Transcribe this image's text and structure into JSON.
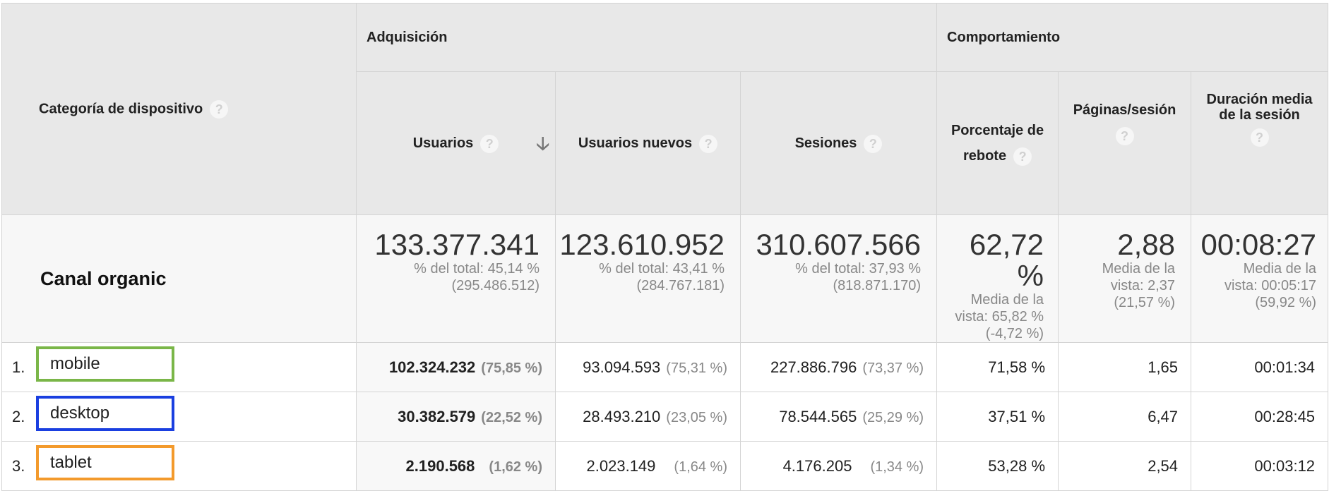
{
  "header": {
    "dimension_label": "Categoría de dispositivo",
    "group_acquisition": "Adquisición",
    "group_behavior": "Comportamiento",
    "help_glyph": "?",
    "sort_glyph": "🡣",
    "columns": {
      "users": "Usuarios",
      "new_users": "Usuarios nuevos",
      "sessions": "Sesiones",
      "bounce_line1": "Porcentaje de",
      "bounce_line2": "rebote",
      "pages_per_session": "Páginas/sesión",
      "avg_duration_line1": "Duración media",
      "avg_duration_line2": "de la sesión"
    }
  },
  "totals": {
    "label": "Canal organic",
    "users": {
      "value": "133.377.341",
      "line1": "% del total: 45,14 %",
      "line2": "(295.486.512)"
    },
    "new_users": {
      "value": "123.610.952",
      "line1": "% del total: 43,41 %",
      "line2": "(284.767.181)"
    },
    "sessions": {
      "value": "310.607.566",
      "line1": "% del total: 37,93 %",
      "line2": "(818.871.170)"
    },
    "bounce": {
      "value": "62,72 %",
      "line1": "Media de la",
      "line2": "vista: 65,82 %",
      "line3": "(-4,72 %)"
    },
    "pages": {
      "value": "2,88",
      "line1": "Media de la",
      "line2": "vista: 2,37",
      "line3": "(21,57 %)"
    },
    "duration": {
      "value": "00:08:27",
      "line1": "Media de la",
      "line2": "vista: 00:05:17",
      "line3": "(59,92 %)"
    }
  },
  "rows": [
    {
      "index": "1.",
      "device": "mobile",
      "box_color": "#7ab648",
      "users": "102.324.232",
      "users_pct": "(75,85 %)",
      "new_users": "93.094.593",
      "new_users_pct": "(75,31 %)",
      "sessions": "227.886.796",
      "sessions_pct": "(73,37 %)",
      "bounce": "71,58 %",
      "pages": "1,65",
      "duration": "00:01:34"
    },
    {
      "index": "2.",
      "device": "desktop",
      "box_color": "#1a3fe0",
      "users": "30.382.579",
      "users_pct": "(22,52 %)",
      "new_users": "28.493.210",
      "new_users_pct": "(23,05 %)",
      "sessions": "78.544.565",
      "sessions_pct": "(25,29 %)",
      "bounce": "37,51 %",
      "pages": "6,47",
      "duration": "00:28:45"
    },
    {
      "index": "3.",
      "device": "tablet",
      "box_color": "#f39a2c",
      "users": "2.190.568",
      "users_pct": "(1,62 %)",
      "new_users": "2.023.149",
      "new_users_pct": "(1,64 %)",
      "sessions": "4.176.205",
      "sessions_pct": "(1,34 %)",
      "bounce": "53,28 %",
      "pages": "2,54",
      "duration": "00:03:12"
    }
  ]
}
